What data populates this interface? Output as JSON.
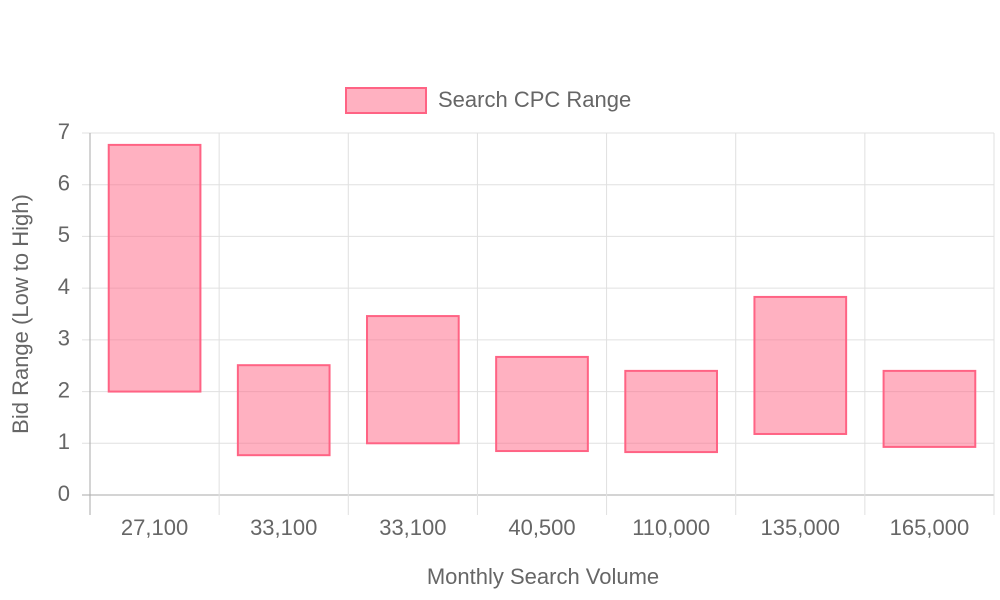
{
  "chart_data": {
    "type": "floating-bar",
    "x_label": "Monthly Search Volume",
    "y_label": "Bid Range (Low to High)",
    "categories": [
      "27,100",
      "33,100",
      "33,100",
      "40,500",
      "110,000",
      "135,000",
      "165,000"
    ],
    "series": [
      {
        "name": "Search CPC Range",
        "color": "#ff6384",
        "values": [
          [
            2.0,
            6.77
          ],
          [
            0.77,
            2.51
          ],
          [
            1.0,
            3.46
          ],
          [
            0.85,
            2.67
          ],
          [
            0.83,
            2.4
          ],
          [
            1.18,
            3.83
          ],
          [
            0.93,
            2.4
          ]
        ]
      }
    ],
    "ylim": [
      0,
      7
    ],
    "yticks": [
      0,
      1,
      2,
      3,
      4,
      5,
      6,
      7
    ],
    "grid": true,
    "legend": "top"
  }
}
